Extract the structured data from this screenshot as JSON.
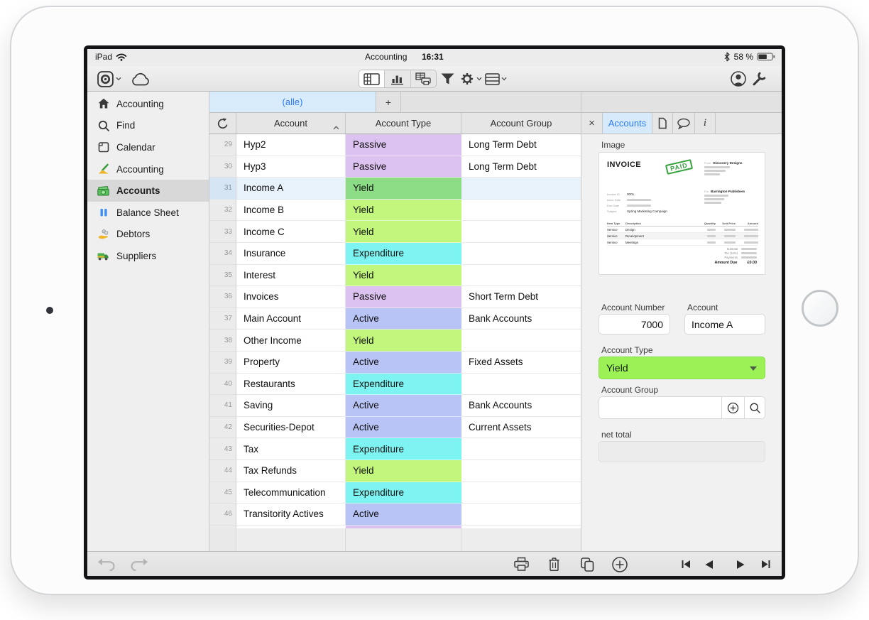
{
  "status_bar": {
    "device_label": "iPad",
    "title": "Accounting",
    "time": "16:31",
    "battery_percent": "58 %",
    "icons": [
      "wifi-icon",
      "bluetooth-icon",
      "battery-icon"
    ]
  },
  "toolbar": {
    "icon_names": [
      "ninox-logo",
      "chevron-down",
      "cloud",
      "table-form-view",
      "bar-chart-view",
      "print-view",
      "filter-funnel",
      "settings-gear",
      "table-rows",
      "user-account",
      "tools-wrench"
    ],
    "selected_view": "table-form-view"
  },
  "sidebar": {
    "items": [
      {
        "label": "Accounting",
        "icon": "home",
        "selected": false
      },
      {
        "label": "Find",
        "icon": "search",
        "selected": false
      },
      {
        "label": "Calendar",
        "icon": "calendar",
        "selected": false
      },
      {
        "label": "Accounting",
        "icon": "pen-journal",
        "selected": false
      },
      {
        "label": "Accounts",
        "icon": "cash",
        "selected": true
      },
      {
        "label": "Balance Sheet",
        "icon": "blue-bars",
        "selected": false
      },
      {
        "label": "Debtors",
        "icon": "hand-coins",
        "selected": false
      },
      {
        "label": "Suppliers",
        "icon": "truck",
        "selected": false
      }
    ]
  },
  "view_tabs": {
    "active": "(alle)",
    "add": "+"
  },
  "table": {
    "columns": [
      "Account",
      "Account Type",
      "Account Group"
    ],
    "sort_column": "Account",
    "selected_row": "31",
    "type_colors": {
      "Passive": "#dcc2f0",
      "Yield": "#c2f67d",
      "Expenditure": "#7ef4f2",
      "Active": "#b8c4f6"
    },
    "selected_yield_color": "#8cdb85",
    "rows": [
      {
        "num": "29",
        "account": "Hyp2",
        "type": "Passive",
        "group": "Long Term Debt"
      },
      {
        "num": "30",
        "account": "Hyp3",
        "type": "Passive",
        "group": "Long Term Debt"
      },
      {
        "num": "31",
        "account": "Income A",
        "type": "Yield",
        "group": "",
        "selected": true
      },
      {
        "num": "32",
        "account": "Income B",
        "type": "Yield",
        "group": ""
      },
      {
        "num": "33",
        "account": "Income C",
        "type": "Yield",
        "group": ""
      },
      {
        "num": "34",
        "account": "Insurance",
        "type": "Expenditure",
        "group": ""
      },
      {
        "num": "35",
        "account": "Interest",
        "type": "Yield",
        "group": ""
      },
      {
        "num": "36",
        "account": "Invoices",
        "type": "Passive",
        "group": "Short Term Debt"
      },
      {
        "num": "37",
        "account": "Main Account",
        "type": "Active",
        "group": "Bank Accounts"
      },
      {
        "num": "38",
        "account": "Other Income",
        "type": "Yield",
        "group": ""
      },
      {
        "num": "39",
        "account": "Property",
        "type": "Active",
        "group": "Fixed Assets"
      },
      {
        "num": "40",
        "account": "Restaurants",
        "type": "Expenditure",
        "group": ""
      },
      {
        "num": "41",
        "account": "Saving",
        "type": "Active",
        "group": "Bank Accounts"
      },
      {
        "num": "42",
        "account": "Securities-Depot",
        "type": "Active",
        "group": "Current Assets"
      },
      {
        "num": "43",
        "account": "Tax",
        "type": "Expenditure",
        "group": ""
      },
      {
        "num": "44",
        "account": "Tax Refunds",
        "type": "Yield",
        "group": ""
      },
      {
        "num": "45",
        "account": "Telecommunication",
        "type": "Expenditure",
        "group": ""
      },
      {
        "num": "46",
        "account": "Transitority Actives",
        "type": "Active",
        "group": ""
      }
    ]
  },
  "detail": {
    "close": "×",
    "tab": "Accounts",
    "info": "i",
    "icon_names": [
      "close-icon",
      "document-icon",
      "comment-bubble-icon",
      "info-icon"
    ],
    "image_label": "Image",
    "invoice": {
      "title": "INVOICE",
      "stamp": "PAID",
      "from_label": "From",
      "from_name": "Discovery Designs",
      "for_label": "For",
      "for_name": "Barrington Publishers",
      "meta_labels": [
        "Invoice ID",
        "Issue Date",
        "Due Date",
        "Subject"
      ],
      "meta_values": [
        "0001",
        "",
        "",
        "Spring Marketing Campaign"
      ],
      "table_headers": [
        "Item Type",
        "Description",
        "Quantity",
        "Unit Price",
        "Amount"
      ],
      "items": [
        [
          "Service",
          "Design"
        ],
        [
          "Service",
          "Development"
        ],
        [
          "Service",
          "Meetings"
        ]
      ],
      "totals_labels": [
        "Subtotal",
        "Tax (15%)",
        "Payments"
      ],
      "amount_due_label": "Amount Due",
      "amount_due": "£0.00"
    },
    "account_number_label": "Account Number",
    "account_number": "7000",
    "account_label": "Account",
    "account": "Income A",
    "account_type_label": "Account Type",
    "account_type": "Yield",
    "account_group_label": "Account Group",
    "account_group": "",
    "net_total_label": "net total",
    "net_total": ""
  },
  "bottom_toolbar": {
    "icon_names": [
      "undo-icon",
      "redo-icon",
      "print-icon",
      "trash-icon",
      "duplicate-icon",
      "add-record-icon",
      "first-record-icon",
      "previous-record-icon",
      "next-record-icon",
      "last-record-icon"
    ]
  },
  "colors": {
    "accent_blue": "#2e7bf6",
    "tab_blue_bg": "#d8ebfb",
    "select_green": "#9cf157",
    "selected_row_bg": "#e8f2fb"
  }
}
